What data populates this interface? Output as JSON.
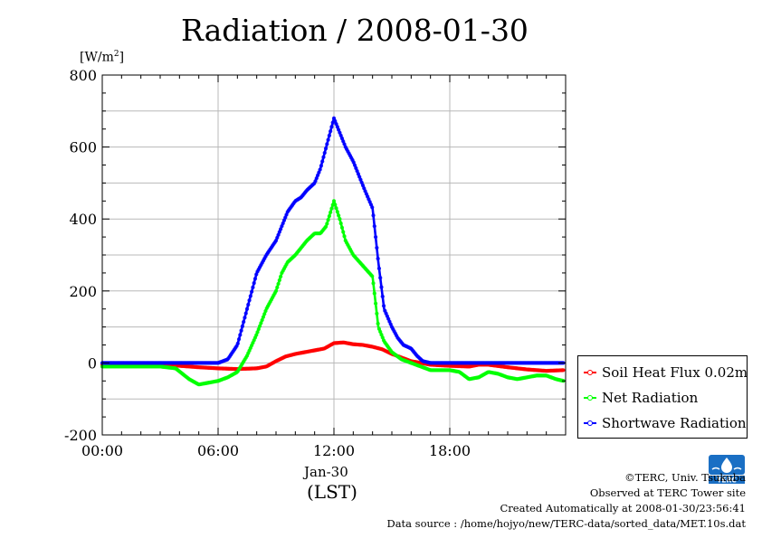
{
  "chart_data": {
    "type": "line",
    "title": "Radiation / 2008-01-30",
    "ylabel": "[W/m2]",
    "ylabel_base": "[W/m",
    "ylabel_sup": "2",
    "ylabel_end": "]",
    "xlabel": "(LST)",
    "x_date_label": "Jan-30",
    "x_unit": "hour",
    "xlim": [
      0,
      24
    ],
    "ylim": [
      -200,
      800
    ],
    "x_ticks": [
      0,
      6,
      12,
      18
    ],
    "x_tick_labels": [
      "00:00",
      "06:00",
      "12:00",
      "18:00"
    ],
    "y_ticks": [
      -200,
      0,
      200,
      400,
      600,
      800
    ],
    "y_tick_labels": [
      "-200",
      "0",
      "200",
      "400",
      "600",
      "800"
    ],
    "grid": true,
    "legend_position": "lower-right-outside",
    "series": [
      {
        "name": "Soil Heat Flux 0.02m",
        "color": "#ff0000",
        "x": [
          0,
          1,
          2,
          3,
          4,
          5,
          6,
          7,
          8,
          8.5,
          9,
          9.5,
          10,
          10.5,
          11,
          11.5,
          12,
          12.5,
          13,
          13.5,
          14,
          14.5,
          15,
          15.5,
          16,
          16.5,
          17,
          18,
          19,
          19.5,
          20,
          21,
          22,
          23,
          23.9
        ],
        "y": [
          -5,
          -5,
          -5,
          -5,
          -8,
          -12,
          -15,
          -17,
          -15,
          -10,
          5,
          18,
          25,
          30,
          35,
          40,
          55,
          57,
          52,
          50,
          45,
          38,
          25,
          15,
          5,
          0,
          -5,
          -8,
          -10,
          -5,
          -5,
          -12,
          -18,
          -22,
          -20
        ]
      },
      {
        "name": "Net Radiation",
        "color": "#00ff00",
        "x": [
          0,
          1,
          2,
          3,
          3.8,
          4.5,
          5,
          5.5,
          6,
          6.5,
          7,
          7.5,
          8,
          8.5,
          9,
          9.3,
          9.6,
          10,
          10.3,
          10.6,
          11,
          11.3,
          11.6,
          12,
          12.3,
          12.6,
          13,
          13.5,
          14,
          14.3,
          14.6,
          15,
          15.5,
          16,
          16.5,
          17,
          17.5,
          18,
          18.5,
          19,
          19.5,
          20,
          20.5,
          21,
          21.5,
          22,
          22.5,
          23,
          23.5,
          23.9
        ],
        "y": [
          -10,
          -10,
          -10,
          -10,
          -15,
          -45,
          -60,
          -55,
          -50,
          -40,
          -25,
          20,
          80,
          150,
          200,
          250,
          280,
          300,
          320,
          340,
          360,
          360,
          380,
          450,
          400,
          340,
          300,
          270,
          240,
          100,
          60,
          30,
          10,
          0,
          -10,
          -20,
          -20,
          -20,
          -25,
          -45,
          -40,
          -25,
          -30,
          -40,
          -45,
          -40,
          -35,
          -35,
          -45,
          -50
        ]
      },
      {
        "name": "Shortwave Radiation",
        "color": "#0000ff",
        "x": [
          0,
          1,
          2,
          3,
          4,
          5,
          6,
          6.5,
          7,
          7.5,
          8,
          8.5,
          9,
          9.3,
          9.6,
          10,
          10.3,
          10.6,
          11,
          11.3,
          11.6,
          12,
          12.3,
          12.6,
          13,
          13.3,
          13.6,
          14,
          14.3,
          14.6,
          15,
          15.3,
          15.6,
          16,
          16.3,
          16.6,
          17,
          18,
          19,
          20,
          21,
          22,
          23,
          23.9
        ],
        "y": [
          0,
          0,
          0,
          0,
          0,
          0,
          0,
          10,
          50,
          150,
          250,
          300,
          340,
          380,
          420,
          450,
          460,
          480,
          500,
          540,
          600,
          680,
          640,
          600,
          560,
          520,
          480,
          430,
          280,
          150,
          100,
          70,
          50,
          40,
          20,
          5,
          0,
          0,
          0,
          0,
          0,
          0,
          0,
          0
        ]
      }
    ]
  },
  "footer": {
    "copyright": "©TERC, Univ. Tsukuba",
    "observed": "Observed at TERC Tower site",
    "created": "Created Automatically at 2008-01-30/23:56:41",
    "source": "Data source : /home/hojyo/new/TERC-data/sorted_data/MET.10s.dat"
  },
  "logo": {
    "text": "TERC",
    "color": "#1a6fc4"
  }
}
